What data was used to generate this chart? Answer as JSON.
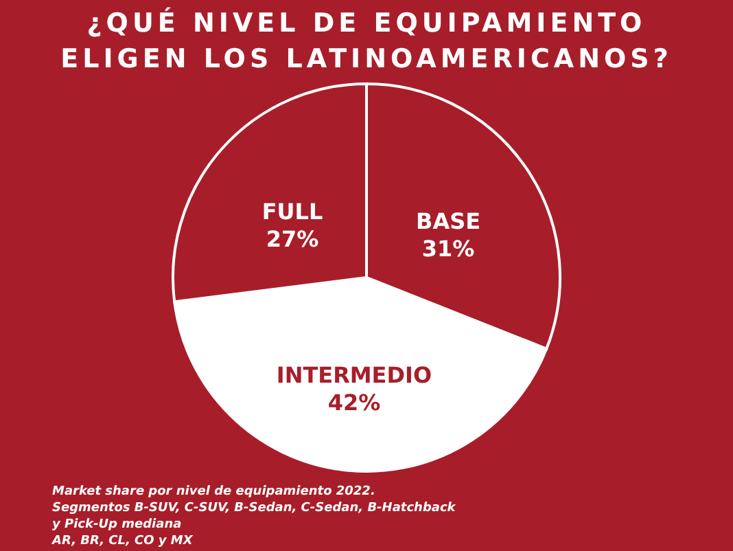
{
  "chart_data": {
    "type": "pie",
    "title": "¿QUÉ NIVEL DE EQUIPAMIENTO ELIGEN LOS LATINOAMERICANOS?",
    "categories": [
      "BASE",
      "INTERMEDIO",
      "FULL"
    ],
    "values": [
      31,
      42,
      27
    ],
    "value_labels": [
      "31%",
      "42%",
      "27%"
    ],
    "colors": [
      "#a71e2a",
      "#ffffff",
      "#a71e2a"
    ],
    "annotations": [
      "Market share por nivel de equipamiento 2022.",
      "Segmentos B-SUV, C-SUV, B-Sedan, C-Sedan, B-Hatchback y Pick-Up mediana",
      "AR, BR, CL, CO y MX"
    ]
  }
}
